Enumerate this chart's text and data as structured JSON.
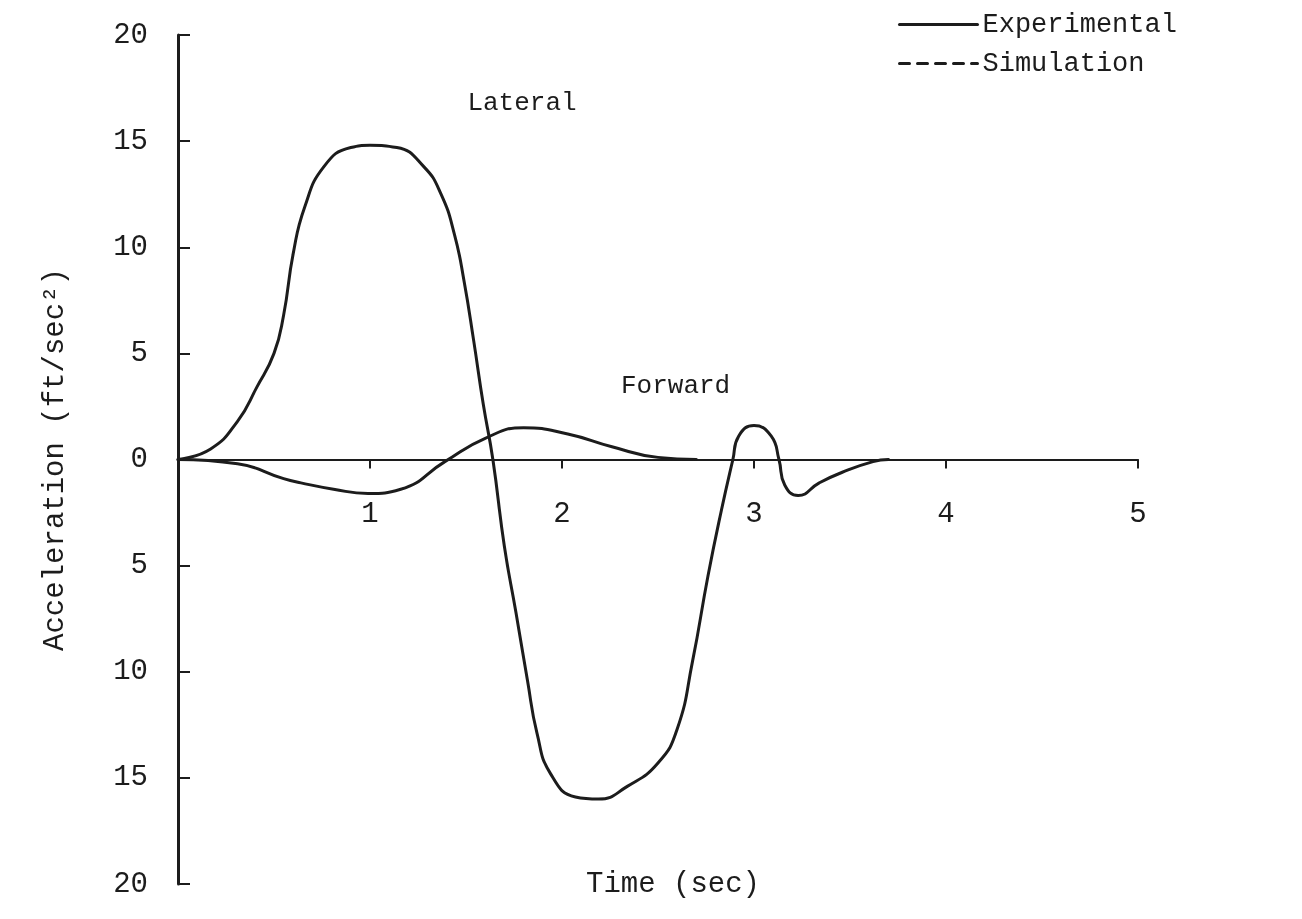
{
  "chart_data": {
    "type": "line",
    "xlabel": "Time (sec)",
    "ylabel": "Acceleration (ft/sec²)",
    "xlim": [
      0,
      5
    ],
    "xticks": [
      1,
      2,
      3,
      4,
      5
    ],
    "ylim": [
      -20,
      20
    ],
    "yticks": [
      {
        "value": -20,
        "label": "20"
      },
      {
        "value": -15,
        "label": "15"
      },
      {
        "value": -10,
        "label": "10"
      },
      {
        "value": -5,
        "label": "5"
      },
      0,
      5,
      10,
      15,
      20
    ],
    "series": [
      {
        "name": "Experimental",
        "color": "#1c1c1c",
        "line_style": "solid",
        "x": [
          0,
          0.17,
          0.31,
          0.41,
          0.5,
          0.55,
          0.6,
          0.66,
          0.76,
          0.9,
          1.0,
          1.14,
          1.28,
          1.37,
          1.44,
          1.49,
          1.54,
          1.59,
          1.64,
          1.7,
          1.76,
          1.82,
          1.87,
          1.94,
          2.07,
          2.19,
          2.34,
          2.5,
          2.6,
          2.68,
          2.76,
          2.83,
          2.89,
          2.92,
          3.0,
          3.09,
          3.13,
          3.16,
          3.23,
          3.34,
          3.46,
          3.62,
          3.7
        ],
        "values": [
          0,
          0.5,
          1.8,
          3.4,
          5.0,
          6.8,
          9.7,
          11.9,
          13.8,
          14.7,
          14.8,
          14.7,
          13.8,
          12.5,
          10.6,
          8.4,
          5.6,
          2.6,
          0,
          -4.1,
          -7.2,
          -10.4,
          -12.9,
          -14.8,
          -15.9,
          -16.0,
          -15.4,
          -14.3,
          -12.7,
          -9.5,
          -5.5,
          -2.4,
          0,
          1.1,
          1.6,
          1.1,
          0,
          -1.2,
          -1.7,
          -1.1,
          -0.6,
          -0.1,
          0
        ]
      },
      {
        "color": "#1c1c1c",
        "line_style": "solid",
        "x": [
          0,
          0.31,
          0.55,
          0.64,
          0.81,
          0.99,
          1.16,
          1.39,
          1.6,
          1.8,
          2.03,
          2.26,
          2.5,
          2.7
        ],
        "values": [
          0,
          -0.2,
          -0.9,
          -1.1,
          -1.4,
          -1.6,
          -1.4,
          -0.1,
          1.0,
          1.5,
          1.2,
          0.6,
          0.1,
          0
        ]
      },
      {
        "name": "Simulation",
        "color": "#1c1c1c",
        "line_style": "dashed"
      }
    ],
    "annotations": [
      "Lateral",
      "Forward"
    ],
    "marker": "none",
    "legend": "top right"
  }
}
